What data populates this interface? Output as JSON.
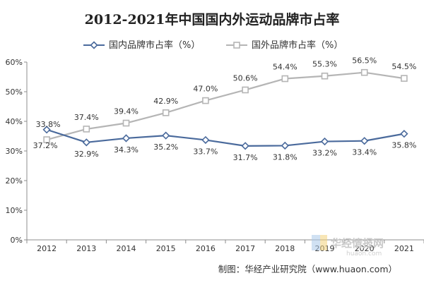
{
  "chart_data": {
    "type": "line",
    "title": "2012-2021年中国国内外运动品牌市占率",
    "categories": [
      "2012",
      "2013",
      "2014",
      "2015",
      "2016",
      "2017",
      "2018",
      "2019",
      "2020",
      "2021"
    ],
    "ylim": [
      0,
      60
    ],
    "y_ticks": [
      "0%",
      "10%",
      "20%",
      "30%",
      "40%",
      "50%",
      "60%"
    ],
    "grid": false,
    "legend_position": "top-center",
    "series": [
      {
        "name": "国内品牌市占率（%）",
        "color": "#4a6a9c",
        "marker": "diamond",
        "values": [
          37.2,
          32.9,
          34.3,
          35.2,
          33.7,
          31.7,
          31.8,
          33.2,
          33.4,
          35.8
        ],
        "labels": [
          "37.2%",
          "32.9%",
          "34.3%",
          "35.2%",
          "33.7%",
          "31.7%",
          "31.8%",
          "33.2%",
          "33.4%",
          "35.8%"
        ]
      },
      {
        "name": "国外品牌市占率（%）",
        "color": "#b5b5b5",
        "marker": "square",
        "values": [
          33.8,
          37.4,
          39.4,
          42.9,
          47.0,
          50.6,
          54.4,
          55.3,
          56.5,
          54.5
        ],
        "labels": [
          "33.8%",
          "37.4%",
          "39.4%",
          "42.9%",
          "47.0%",
          "50.6%",
          "54.4%",
          "55.3%",
          "56.5%",
          "54.5%"
        ]
      }
    ]
  },
  "source": "制图：华经产业研究院（www.huaon.com）",
  "watermark": {
    "text": "华经情报网",
    "subtext": "huaon.com"
  }
}
